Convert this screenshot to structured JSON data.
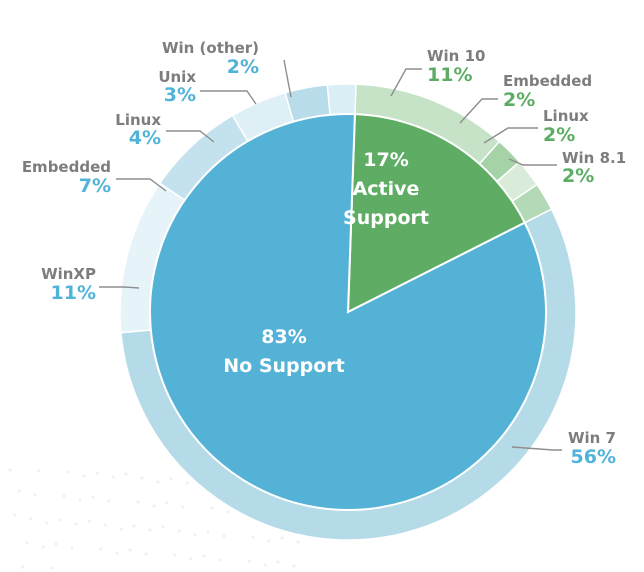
{
  "chart_data": {
    "type": "pie",
    "inner": [
      {
        "label": "No Support",
        "value": 83,
        "value_text": "83%",
        "color": "#55b2d7"
      },
      {
        "label": "Active Support",
        "value": 17,
        "value_text": "17%",
        "color": "#5fad65"
      }
    ],
    "outer": [
      {
        "label": "Win 10",
        "value": 11,
        "value_text": "11%",
        "group": "Active Support",
        "color": "#c6e3c7"
      },
      {
        "label": "Embedded",
        "value": 2,
        "value_text": "2%",
        "group": "Active Support",
        "color": "#a6d2a8"
      },
      {
        "label": "Linux",
        "value": 2,
        "value_text": "2%",
        "group": "Active Support",
        "color": "#d8ecd9"
      },
      {
        "label": "Win 8.1",
        "value": 2,
        "value_text": "2%",
        "group": "Active Support",
        "color": "#b4d9b6"
      },
      {
        "label": "Win 7",
        "value": 56,
        "value_text": "56%",
        "group": "No Support",
        "color": "#b5dbe9"
      },
      {
        "label": "WinXP",
        "value": 11,
        "value_text": "11%",
        "group": "No Support",
        "color": "#e6f3f8"
      },
      {
        "label": "Embedded",
        "value": 7,
        "value_text": "7%",
        "group": "No Support",
        "color": "#c3e2ee"
      },
      {
        "label": "Linux",
        "value": 4,
        "value_text": "4%",
        "group": "No Support",
        "color": "#def0f6"
      },
      {
        "label": "Unix",
        "value": 3,
        "value_text": "3%",
        "group": "No Support",
        "color": "#b9dcea"
      },
      {
        "label": "Win (other)",
        "value": 2,
        "value_text": "2%",
        "group": "No Support",
        "color": "#d9eef5"
      }
    ]
  }
}
